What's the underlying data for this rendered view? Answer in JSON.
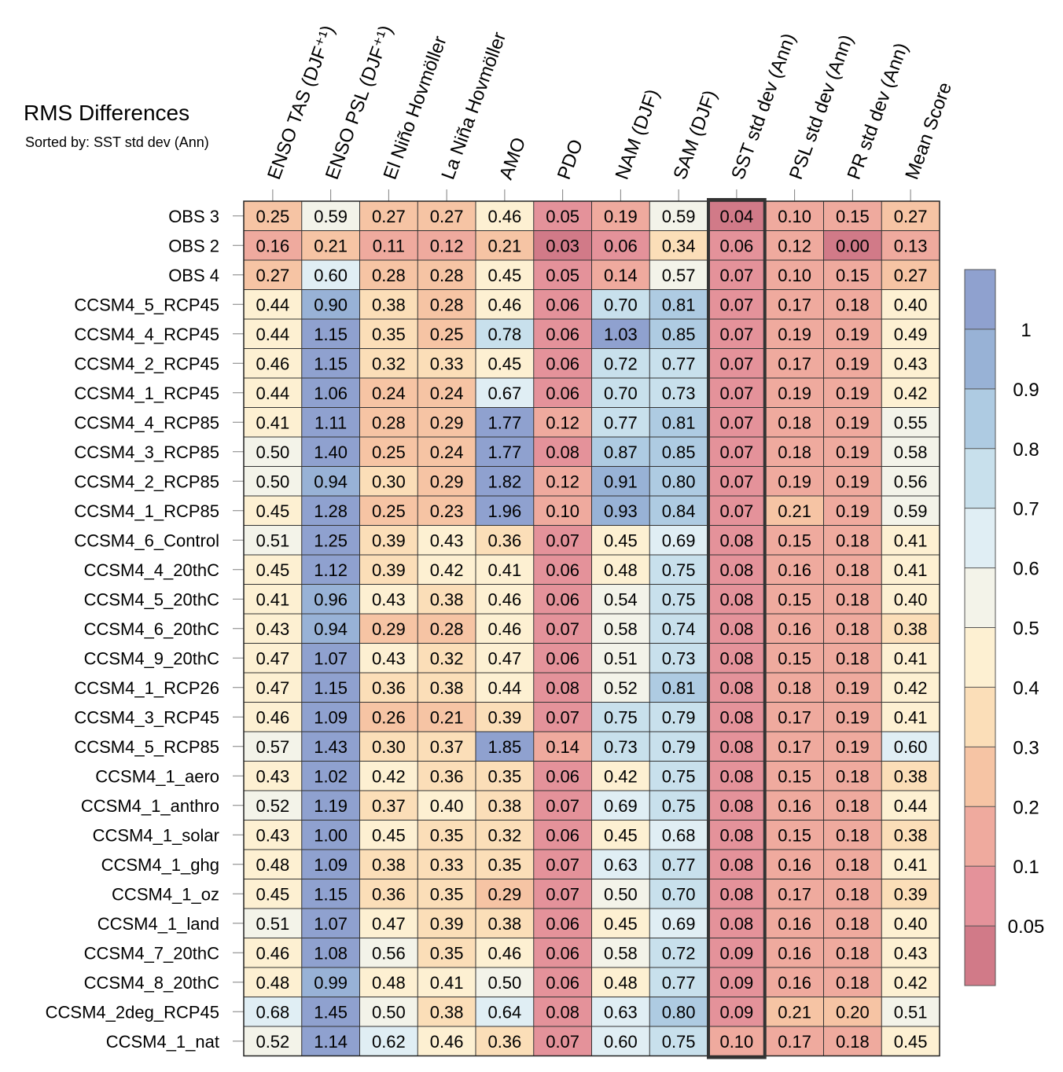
{
  "chart_data": {
    "type": "heatmap",
    "title": "RMS Differences",
    "subtitle": "Sorted by: SST std dev (Ann)",
    "highlighted_column": "SST std dev (Ann)",
    "columns": [
      "ENSO TAS (DJF⁺¹)",
      "ENSO PSL (DJF⁺¹)",
      "El Niño Hovmöller",
      "La Niña Hovmöller",
      "AMO",
      "PDO",
      "NAM (DJF)",
      "SAM (DJF)",
      "SST std dev (Ann)",
      "PSL std dev (Ann)",
      "PR std dev (Ann)",
      "Mean Score"
    ],
    "rows": [
      {
        "name": "OBS 3",
        "values": [
          0.25,
          0.59,
          0.27,
          0.27,
          0.46,
          0.05,
          0.19,
          0.59,
          0.04,
          0.1,
          0.15,
          0.27
        ]
      },
      {
        "name": "OBS 2",
        "values": [
          0.16,
          0.21,
          0.11,
          0.12,
          0.21,
          0.03,
          0.06,
          0.34,
          0.06,
          0.12,
          0.0,
          0.13
        ]
      },
      {
        "name": "OBS 4",
        "values": [
          0.27,
          0.6,
          0.28,
          0.28,
          0.45,
          0.05,
          0.14,
          0.57,
          0.07,
          0.1,
          0.15,
          0.27
        ]
      },
      {
        "name": "CCSM4_5_RCP45",
        "values": [
          0.44,
          0.9,
          0.38,
          0.28,
          0.46,
          0.06,
          0.7,
          0.81,
          0.07,
          0.17,
          0.18,
          0.4
        ]
      },
      {
        "name": "CCSM4_4_RCP45",
        "values": [
          0.44,
          1.15,
          0.35,
          0.25,
          0.78,
          0.06,
          1.03,
          0.85,
          0.07,
          0.19,
          0.19,
          0.49
        ]
      },
      {
        "name": "CCSM4_2_RCP45",
        "values": [
          0.46,
          1.15,
          0.32,
          0.33,
          0.45,
          0.06,
          0.72,
          0.77,
          0.07,
          0.17,
          0.19,
          0.43
        ]
      },
      {
        "name": "CCSM4_1_RCP45",
        "values": [
          0.44,
          1.06,
          0.24,
          0.24,
          0.67,
          0.06,
          0.7,
          0.73,
          0.07,
          0.19,
          0.19,
          0.42
        ]
      },
      {
        "name": "CCSM4_4_RCP85",
        "values": [
          0.41,
          1.11,
          0.28,
          0.29,
          1.77,
          0.12,
          0.77,
          0.81,
          0.07,
          0.18,
          0.19,
          0.55
        ]
      },
      {
        "name": "CCSM4_3_RCP85",
        "values": [
          0.5,
          1.4,
          0.25,
          0.24,
          1.77,
          0.08,
          0.87,
          0.85,
          0.07,
          0.18,
          0.19,
          0.58
        ]
      },
      {
        "name": "CCSM4_2_RCP85",
        "values": [
          0.5,
          0.94,
          0.3,
          0.29,
          1.82,
          0.12,
          0.91,
          0.8,
          0.07,
          0.19,
          0.19,
          0.56
        ]
      },
      {
        "name": "CCSM4_1_RCP85",
        "values": [
          0.45,
          1.28,
          0.25,
          0.23,
          1.96,
          0.1,
          0.93,
          0.84,
          0.07,
          0.21,
          0.19,
          0.59
        ]
      },
      {
        "name": "CCSM4_6_Control",
        "values": [
          0.51,
          1.25,
          0.39,
          0.43,
          0.36,
          0.07,
          0.45,
          0.69,
          0.08,
          0.15,
          0.18,
          0.41
        ]
      },
      {
        "name": "CCSM4_4_20thC",
        "values": [
          0.45,
          1.12,
          0.39,
          0.42,
          0.41,
          0.06,
          0.48,
          0.75,
          0.08,
          0.16,
          0.18,
          0.41
        ]
      },
      {
        "name": "CCSM4_5_20thC",
        "values": [
          0.41,
          0.96,
          0.43,
          0.38,
          0.46,
          0.06,
          0.54,
          0.75,
          0.08,
          0.15,
          0.18,
          0.4
        ]
      },
      {
        "name": "CCSM4_6_20thC",
        "values": [
          0.43,
          0.94,
          0.29,
          0.28,
          0.46,
          0.07,
          0.58,
          0.74,
          0.08,
          0.16,
          0.18,
          0.38
        ]
      },
      {
        "name": "CCSM4_9_20thC",
        "values": [
          0.47,
          1.07,
          0.43,
          0.32,
          0.47,
          0.06,
          0.51,
          0.73,
          0.08,
          0.15,
          0.18,
          0.41
        ]
      },
      {
        "name": "CCSM4_1_RCP26",
        "values": [
          0.47,
          1.15,
          0.36,
          0.38,
          0.44,
          0.08,
          0.52,
          0.81,
          0.08,
          0.18,
          0.19,
          0.42
        ]
      },
      {
        "name": "CCSM4_3_RCP45",
        "values": [
          0.46,
          1.09,
          0.26,
          0.21,
          0.39,
          0.07,
          0.75,
          0.79,
          0.08,
          0.17,
          0.19,
          0.41
        ]
      },
      {
        "name": "CCSM4_5_RCP85",
        "values": [
          0.57,
          1.43,
          0.3,
          0.37,
          1.85,
          0.14,
          0.73,
          0.79,
          0.08,
          0.17,
          0.19,
          0.6
        ]
      },
      {
        "name": "CCSM4_1_aero",
        "values": [
          0.43,
          1.02,
          0.42,
          0.36,
          0.35,
          0.06,
          0.42,
          0.75,
          0.08,
          0.15,
          0.18,
          0.38
        ]
      },
      {
        "name": "CCSM4_1_anthro",
        "values": [
          0.52,
          1.19,
          0.37,
          0.4,
          0.38,
          0.07,
          0.69,
          0.75,
          0.08,
          0.16,
          0.18,
          0.44
        ]
      },
      {
        "name": "CCSM4_1_solar",
        "values": [
          0.43,
          1.0,
          0.45,
          0.35,
          0.32,
          0.06,
          0.45,
          0.68,
          0.08,
          0.15,
          0.18,
          0.38
        ]
      },
      {
        "name": "CCSM4_1_ghg",
        "values": [
          0.48,
          1.09,
          0.38,
          0.33,
          0.35,
          0.07,
          0.63,
          0.77,
          0.08,
          0.16,
          0.18,
          0.41
        ]
      },
      {
        "name": "CCSM4_1_oz",
        "values": [
          0.45,
          1.15,
          0.36,
          0.35,
          0.29,
          0.07,
          0.5,
          0.7,
          0.08,
          0.17,
          0.18,
          0.39
        ]
      },
      {
        "name": "CCSM4_1_land",
        "values": [
          0.51,
          1.07,
          0.47,
          0.39,
          0.38,
          0.06,
          0.45,
          0.69,
          0.08,
          0.16,
          0.18,
          0.4
        ]
      },
      {
        "name": "CCSM4_7_20thC",
        "values": [
          0.46,
          1.08,
          0.56,
          0.35,
          0.46,
          0.06,
          0.58,
          0.72,
          0.09,
          0.16,
          0.18,
          0.43
        ]
      },
      {
        "name": "CCSM4_8_20thC",
        "values": [
          0.48,
          0.99,
          0.48,
          0.41,
          0.5,
          0.06,
          0.48,
          0.77,
          0.09,
          0.16,
          0.18,
          0.42
        ]
      },
      {
        "name": "CCSM4_2deg_RCP45",
        "values": [
          0.68,
          1.45,
          0.5,
          0.38,
          0.64,
          0.08,
          0.63,
          0.8,
          0.09,
          0.21,
          0.2,
          0.51
        ]
      },
      {
        "name": "CCSM4_1_nat",
        "values": [
          0.52,
          1.14,
          0.62,
          0.46,
          0.36,
          0.07,
          0.6,
          0.75,
          0.1,
          0.17,
          0.18,
          0.45
        ]
      }
    ],
    "colorbar": {
      "boundaries": [
        0.05,
        0.1,
        0.2,
        0.3,
        0.4,
        0.5,
        0.6,
        0.7,
        0.8,
        0.9,
        1
      ],
      "tick_labels": [
        "0.05",
        "0.1",
        "0.2",
        "0.3",
        "0.4",
        "0.5",
        "0.6",
        "0.7",
        "0.8",
        "0.9",
        "1"
      ],
      "colors": [
        "#d17a88",
        "#e4929a",
        "#efaa9e",
        "#f6c4a4",
        "#fbdeb8",
        "#fdf0d2",
        "#f3f3e9",
        "#e0eef4",
        "#c8e0ec",
        "#aecbe2",
        "#98b2d6",
        "#8fa1cf"
      ]
    }
  }
}
